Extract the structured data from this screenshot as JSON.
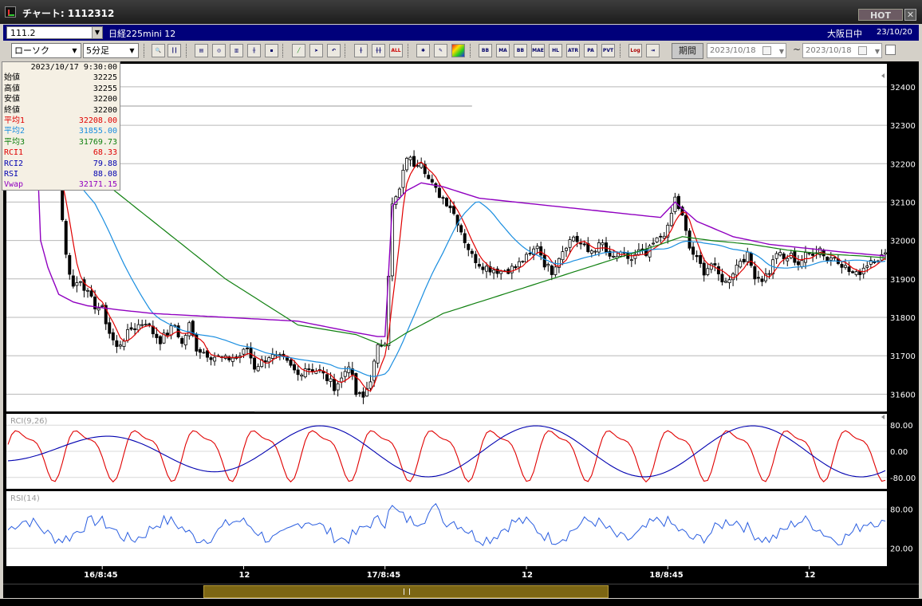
{
  "window": {
    "title": "チャート: 1112312",
    "hot_label": "HOT",
    "close_label": "✕"
  },
  "header": {
    "code": "111.2",
    "instrument": "日経225mini 12",
    "exchange": "大阪日中",
    "date": "23/10/20"
  },
  "toolbar": {
    "chart_type": "ローソク",
    "interval": "5分足",
    "indicator_buttons": [
      "BB",
      "MA",
      "BB",
      "MAE",
      "HL",
      "ATR",
      "PA RA",
      "PVT"
    ],
    "log_label": "Log",
    "period_label": "期間",
    "date_from": "2023/10/18",
    "date_to": "2023/10/18",
    "range_separator": "~"
  },
  "info_panel": {
    "timestamp": "2023/10/17 9:30:00",
    "rows": [
      {
        "label": "始値",
        "value": "32225",
        "color": "#000000"
      },
      {
        "label": "高値",
        "value": "32255",
        "color": "#000000"
      },
      {
        "label": "安値",
        "value": "32200",
        "color": "#000000"
      },
      {
        "label": "終値",
        "value": "32200",
        "color": "#000000"
      },
      {
        "label": "平均1",
        "value": "32208.00",
        "color": "#e00000"
      },
      {
        "label": "平均2",
        "value": "31855.00",
        "color": "#1a8ee0"
      },
      {
        "label": "平均3",
        "value": "31769.73",
        "color": "#108010"
      },
      {
        "label": "RCI1",
        "value": "68.33",
        "color": "#e00000"
      },
      {
        "label": "RCI2",
        "value": "79.88",
        "color": "#0000b0"
      },
      {
        "label": "RSI",
        "value": "88.08",
        "color": "#0000b0"
      },
      {
        "label": "Vwap",
        "value": "32171.15",
        "color": "#9000c0"
      }
    ]
  },
  "colors": {
    "ma1": "#e00000",
    "ma2": "#1a8ee0",
    "ma3": "#108010",
    "vwap": "#9000c0",
    "rci1": "#e00000",
    "rci2": "#0000b0",
    "rsi": "#2a5ee0",
    "candle": "#000000",
    "panel_bg": "#ffffff",
    "axis_bg": "#000000"
  },
  "chart_data": [
    {
      "type": "candlestick",
      "panel": "price",
      "y_ticks": [
        32400,
        32300,
        32200,
        32100,
        32000,
        31900,
        31800,
        31700,
        31600
      ],
      "ylim": [
        31555,
        32460
      ],
      "x_ticks": [
        "16/8:45",
        "12",
        "17/8:45",
        "12",
        "18/8:45",
        "12"
      ],
      "x_tick_index": [
        26,
        65,
        104,
        143,
        182,
        221
      ],
      "bar_count": 243,
      "close_anchors": [
        [
          0,
          32280
        ],
        [
          4,
          32260
        ],
        [
          8,
          32220
        ],
        [
          12,
          32180
        ],
        [
          14,
          32160
        ],
        [
          16,
          31960
        ],
        [
          18,
          31880
        ],
        [
          20,
          31900
        ],
        [
          22,
          31860
        ],
        [
          24,
          31830
        ],
        [
          26,
          31820
        ],
        [
          28,
          31760
        ],
        [
          30,
          31720
        ],
        [
          34,
          31770
        ],
        [
          38,
          31790
        ],
        [
          40,
          31760
        ],
        [
          42,
          31740
        ],
        [
          46,
          31780
        ],
        [
          48,
          31730
        ],
        [
          50,
          31780
        ],
        [
          52,
          31720
        ],
        [
          56,
          31700
        ],
        [
          60,
          31690
        ],
        [
          64,
          31700
        ],
        [
          66,
          31720
        ],
        [
          68,
          31670
        ],
        [
          72,
          31700
        ],
        [
          76,
          31690
        ],
        [
          80,
          31650
        ],
        [
          82,
          31670
        ],
        [
          86,
          31660
        ],
        [
          88,
          31640
        ],
        [
          90,
          31620
        ],
        [
          92,
          31640
        ],
        [
          94,
          31680
        ],
        [
          96,
          31600
        ],
        [
          98,
          31590
        ],
        [
          100,
          31640
        ],
        [
          102,
          31720
        ],
        [
          104,
          31740
        ],
        [
          106,
          32090
        ],
        [
          108,
          32130
        ],
        [
          110,
          32220
        ],
        [
          112,
          32200
        ],
        [
          114,
          32210
        ],
        [
          116,
          32160
        ],
        [
          118,
          32130
        ],
        [
          120,
          32110
        ],
        [
          122,
          32090
        ],
        [
          124,
          32050
        ],
        [
          126,
          32000
        ],
        [
          128,
          31960
        ],
        [
          130,
          31940
        ],
        [
          132,
          31930
        ],
        [
          136,
          31920
        ],
        [
          140,
          31930
        ],
        [
          142,
          31950
        ],
        [
          144,
          31960
        ],
        [
          146,
          31990
        ],
        [
          148,
          31940
        ],
        [
          150,
          31920
        ],
        [
          152,
          31960
        ],
        [
          154,
          31990
        ],
        [
          156,
          32010
        ],
        [
          158,
          31990
        ],
        [
          160,
          31970
        ],
        [
          162,
          31980
        ],
        [
          164,
          31990
        ],
        [
          166,
          31950
        ],
        [
          168,
          31960
        ],
        [
          170,
          31960
        ],
        [
          172,
          31950
        ],
        [
          174,
          31970
        ],
        [
          176,
          31960
        ],
        [
          178,
          31990
        ],
        [
          180,
          32010
        ],
        [
          182,
          32030
        ],
        [
          184,
          32110
        ],
        [
          186,
          32060
        ],
        [
          188,
          31980
        ],
        [
          190,
          31950
        ],
        [
          192,
          31920
        ],
        [
          194,
          31940
        ],
        [
          196,
          31910
        ],
        [
          198,
          31890
        ],
        [
          200,
          31920
        ],
        [
          202,
          31950
        ],
        [
          204,
          31960
        ],
        [
          206,
          31910
        ],
        [
          208,
          31900
        ],
        [
          210,
          31920
        ],
        [
          212,
          31970
        ],
        [
          214,
          31950
        ],
        [
          216,
          31960
        ],
        [
          218,
          31940
        ],
        [
          220,
          31960
        ],
        [
          222,
          31970
        ],
        [
          224,
          31980
        ],
        [
          226,
          31950
        ],
        [
          228,
          31960
        ],
        [
          230,
          31940
        ],
        [
          232,
          31920
        ],
        [
          234,
          31910
        ],
        [
          236,
          31930
        ],
        [
          238,
          31950
        ],
        [
          242,
          31960
        ]
      ],
      "ma3_anchors": [
        [
          0,
          32370
        ],
        [
          4,
          32350
        ],
        [
          10,
          32280
        ],
        [
          20,
          32200
        ],
        [
          40,
          32050
        ],
        [
          60,
          31900
        ],
        [
          80,
          31780
        ],
        [
          96,
          31755
        ],
        [
          104,
          31725
        ],
        [
          110,
          31760
        ],
        [
          120,
          31810
        ],
        [
          130,
          31840
        ],
        [
          140,
          31870
        ],
        [
          150,
          31900
        ],
        [
          160,
          31930
        ],
        [
          170,
          31960
        ],
        [
          180,
          31990
        ],
        [
          186,
          32010
        ],
        [
          194,
          32000
        ],
        [
          205,
          31990
        ],
        [
          215,
          31975
        ],
        [
          225,
          31965
        ],
        [
          235,
          31960
        ],
        [
          242,
          31955
        ]
      ],
      "vwap_anchors": [
        [
          0,
          32380
        ],
        [
          6,
          32370
        ],
        [
          8,
          32240
        ],
        [
          9,
          32000
        ],
        [
          11,
          31930
        ],
        [
          14,
          31860
        ],
        [
          18,
          31840
        ],
        [
          22,
          31830
        ],
        [
          30,
          31820
        ],
        [
          40,
          31810
        ],
        [
          50,
          31805
        ],
        [
          60,
          31800
        ],
        [
          70,
          31795
        ],
        [
          80,
          31790
        ],
        [
          96,
          31760
        ],
        [
          102,
          31750
        ],
        [
          104,
          31750
        ],
        [
          106,
          32090
        ],
        [
          110,
          32130
        ],
        [
          114,
          32150
        ],
        [
          120,
          32140
        ],
        [
          130,
          32110
        ],
        [
          140,
          32100
        ],
        [
          150,
          32090
        ],
        [
          160,
          32080
        ],
        [
          170,
          32070
        ],
        [
          180,
          32060
        ],
        [
          184,
          32100
        ],
        [
          190,
          32050
        ],
        [
          200,
          32010
        ],
        [
          210,
          31990
        ],
        [
          220,
          31980
        ],
        [
          230,
          31970
        ],
        [
          242,
          31960
        ]
      ],
      "extra_lines": [
        [
          32350,
          0,
          128
        ],
        [
          31555,
          68,
          242
        ]
      ]
    },
    {
      "type": "line",
      "panel": "RCI",
      "title": "RCI(9,26)",
      "y_ticks": [
        80,
        0,
        -80
      ],
      "ylim": [
        -100,
        100
      ],
      "series": [
        {
          "name": "RCI1"
        },
        {
          "name": "RCI2"
        }
      ]
    },
    {
      "type": "line",
      "panel": "RSI",
      "title": "RSI(14)",
      "y_ticks": [
        80,
        20
      ],
      "ylim": [
        0,
        100
      ],
      "series": [
        {
          "name": "RSI"
        }
      ]
    }
  ]
}
